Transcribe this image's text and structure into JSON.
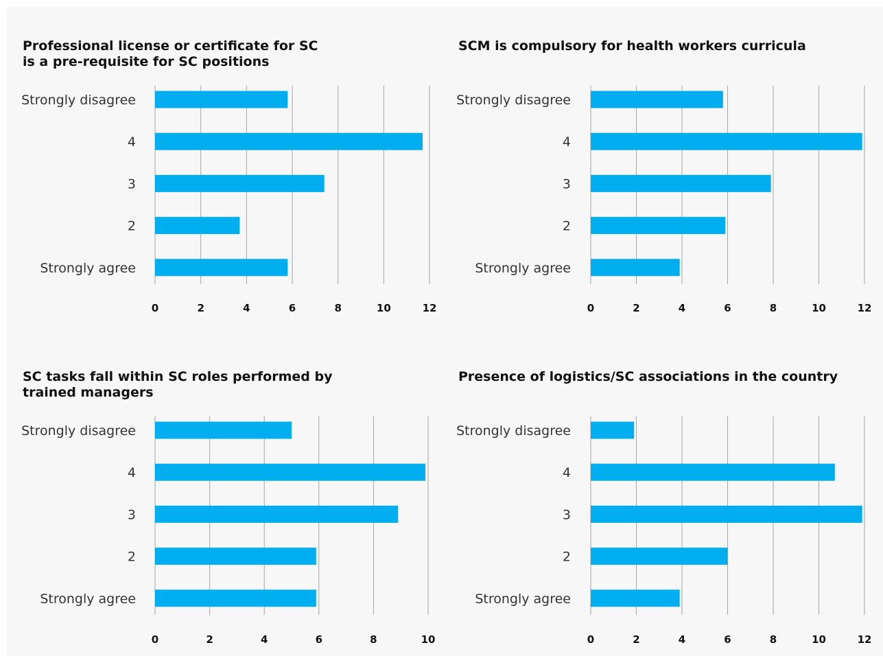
{
  "colors": {
    "bar": "#00aeef",
    "grid": "#a6a6a6"
  },
  "chart_data": [
    {
      "type": "bar",
      "orientation": "horizontal",
      "title": "Professional license or certificate for SC is a pre-requisite for SC positions",
      "categories": [
        "Strongly disagree",
        "4",
        "3",
        "2",
        "Strongly agree"
      ],
      "values": [
        5.8,
        11.7,
        7.4,
        3.7,
        5.8
      ],
      "xlim": [
        0,
        12
      ],
      "xticks": [
        0,
        2,
        4,
        6,
        8,
        10,
        12
      ],
      "xlabel": "",
      "ylabel": "",
      "grid": "vertical"
    },
    {
      "type": "bar",
      "orientation": "horizontal",
      "title": "SCM is compulsory for health workers curricula",
      "categories": [
        "Strongly disagree",
        "4",
        "3",
        "2",
        "Strongly agree"
      ],
      "values": [
        5.8,
        11.9,
        7.9,
        5.9,
        3.9
      ],
      "xlim": [
        0,
        12
      ],
      "xticks": [
        0,
        2,
        4,
        6,
        8,
        10,
        12
      ],
      "xlabel": "",
      "ylabel": "",
      "grid": "vertical"
    },
    {
      "type": "bar",
      "orientation": "horizontal",
      "title": "SC tasks fall within SC roles performed by trained managers",
      "categories": [
        "Strongly disagree",
        "4",
        "3",
        "2",
        "Strongly agree"
      ],
      "values": [
        5.0,
        9.9,
        8.9,
        5.9,
        5.9
      ],
      "xlim": [
        0,
        10
      ],
      "xticks": [
        0,
        2,
        4,
        6,
        8,
        10
      ],
      "xlabel": "",
      "ylabel": "",
      "grid": "vertical"
    },
    {
      "type": "bar",
      "orientation": "horizontal",
      "title": "Presence of logistics/SC associations in the country",
      "categories": [
        "Strongly disagree",
        "4",
        "3",
        "2",
        "Strongly agree"
      ],
      "values": [
        1.9,
        10.7,
        11.9,
        6.0,
        3.9
      ],
      "xlim": [
        0,
        12
      ],
      "xticks": [
        0,
        2,
        4,
        6,
        8,
        10,
        12
      ],
      "xlabel": "",
      "ylabel": "",
      "grid": "vertical"
    }
  ]
}
